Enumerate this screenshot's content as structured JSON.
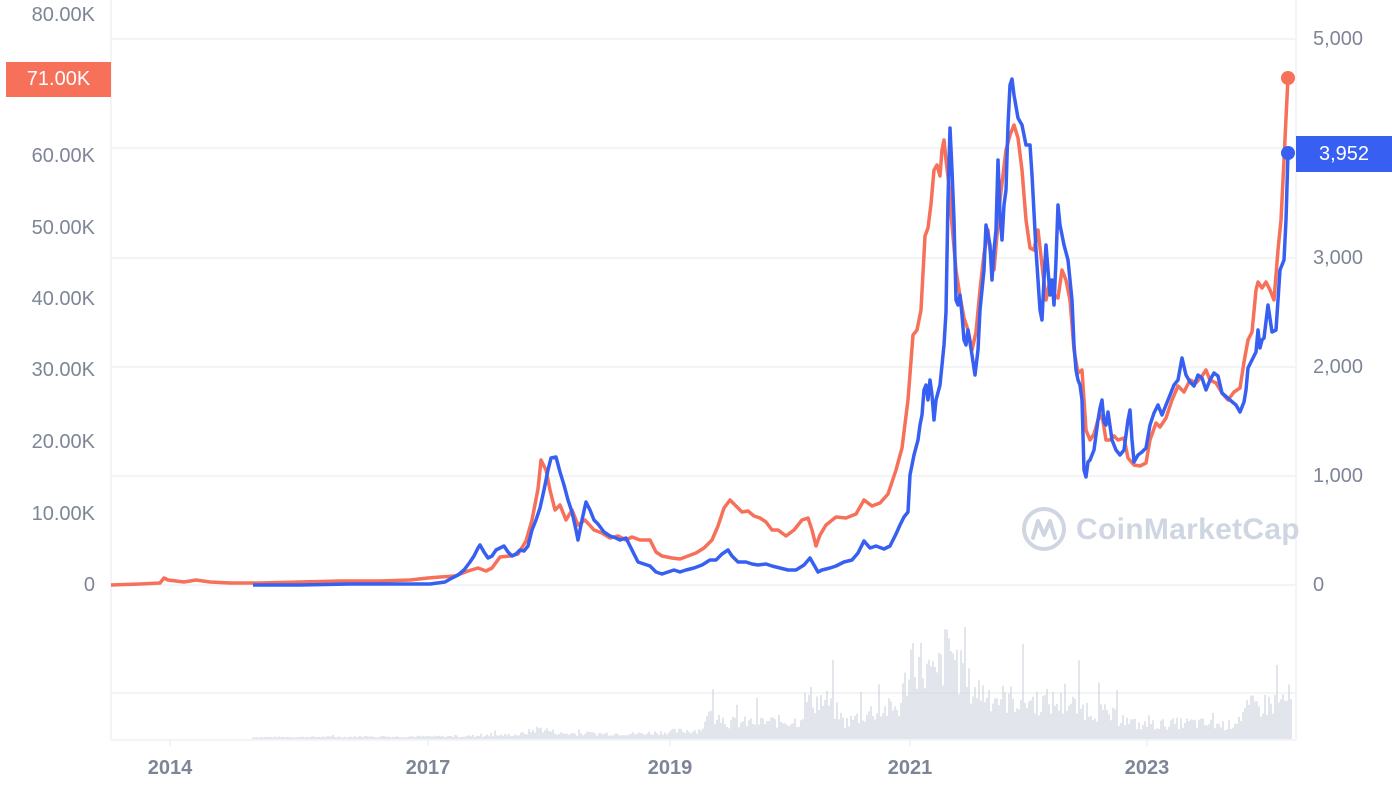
{
  "chart": {
    "watermark": "CoinMarketCap",
    "current_left_value_label": "71.00K",
    "current_right_value_label": "3,952",
    "left_axis_ticks": [
      "80.00K",
      "60.00K",
      "50.00K",
      "40.00K",
      "30.00K",
      "20.00K",
      "10.00K",
      "0"
    ],
    "right_axis_ticks": [
      "5,000",
      "3,000",
      "2,000",
      "1,000",
      "0"
    ],
    "x_axis_ticks": [
      "2014",
      "2017",
      "2019",
      "2021",
      "2023"
    ],
    "colors": {
      "left_series": "#f6705a",
      "right_series": "#3760f2",
      "volume": "#c6cdd9",
      "grid": "#eff1f4",
      "axis_text": "#7d8596"
    }
  },
  "chart_data": {
    "type": "line",
    "title": "",
    "xlabel": "",
    "ylabel": "",
    "x_ticks": [
      "2014",
      "2017",
      "2019",
      "2021",
      "2023"
    ],
    "left_axis": {
      "ticks": [
        "0",
        "10.00K",
        "20.00K",
        "30.00K",
        "40.00K",
        "50.00K",
        "60.00K",
        "80.00K"
      ],
      "range": [
        0,
        80000
      ]
    },
    "right_axis": {
      "ticks": [
        "0",
        "1,000",
        "2,000",
        "3,000",
        "5,000"
      ],
      "range": [
        0,
        5000
      ]
    },
    "grid": true,
    "legend": null,
    "series": [
      {
        "name": "left-axis series (orange)",
        "axis": "left",
        "color": "#f6705a",
        "x": [
          "2013.6",
          "2013.9",
          "2014.5",
          "2015.0",
          "2016.0",
          "2016.9",
          "2017.4",
          "2017.9",
          "2018.1",
          "2018.5",
          "2018.9",
          "2019.0",
          "2019.5",
          "2019.9",
          "2020.2",
          "2020.5",
          "2020.9",
          "2021.0",
          "2021.3",
          "2021.5",
          "2021.8",
          "2021.9",
          "2022.2",
          "2022.4",
          "2022.9",
          "2023.0",
          "2023.5",
          "2023.8",
          "2024.0",
          "2024.2"
        ],
        "values": [
          120,
          1000,
          600,
          250,
          430,
          950,
          2700,
          16500,
          8500,
          6500,
          3500,
          3600,
          11000,
          7300,
          5000,
          9200,
          19000,
          33000,
          58000,
          35000,
          62000,
          58000,
          40000,
          30000,
          16500,
          17000,
          29000,
          26500,
          42000,
          71000
        ]
      },
      {
        "name": "right-axis series (blue)",
        "axis": "right",
        "color": "#3760f2",
        "x": [
          "2015.6",
          "2016.5",
          "2017.0",
          "2017.4",
          "2017.9",
          "2018.1",
          "2018.4",
          "2018.9",
          "2019.5",
          "2019.9",
          "2020.2",
          "2020.6",
          "2020.9",
          "2021.1",
          "2021.4",
          "2021.6",
          "2021.9",
          "2022.1",
          "2022.4",
          "2022.5",
          "2022.9",
          "2023.0",
          "2023.3",
          "2023.6",
          "2023.8",
          "2024.0",
          "2024.2"
        ],
        "values": [
          1,
          12,
          10,
          380,
          730,
          1200,
          700,
          130,
          320,
          150,
          130,
          420,
          600,
          1700,
          4150,
          1900,
          4800,
          2700,
          1000,
          1800,
          1100,
          1300,
          1950,
          1600,
          1580,
          2400,
          3952
        ]
      },
      {
        "name": "volume",
        "type": "bar",
        "color": "#c6cdd9",
        "note": "daily volume histogram, peaks around early 2021 and mid-2021"
      }
    ],
    "annotations": [
      {
        "text": "71.00K",
        "axis": "left",
        "series": "orange",
        "type": "current-value-badge"
      },
      {
        "text": "3,952",
        "axis": "right",
        "series": "blue",
        "type": "current-value-badge"
      }
    ]
  }
}
